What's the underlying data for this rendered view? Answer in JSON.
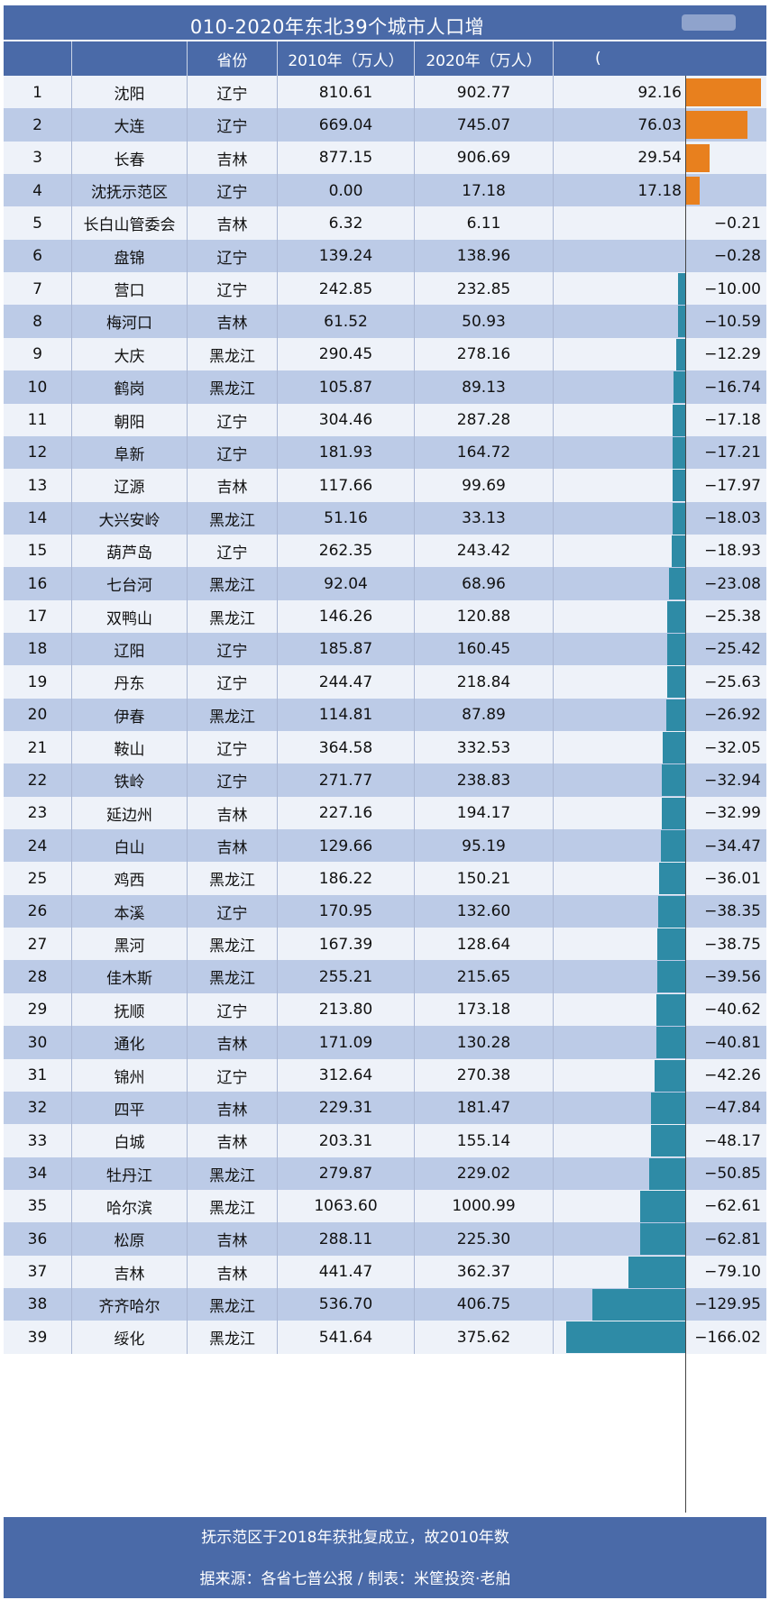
{
  "title": "010-2020年东北39个城市人口增",
  "headers": {
    "rank": "",
    "city": "",
    "province": "省份",
    "pop2010": "2010年（万人）",
    "pop2020": "2020年（万人）",
    "change": "("
  },
  "note": "抚示范区于2018年获批复成立，故2010年数",
  "source": "据来源：各省七普公报 / 制表：米筐投资·老舶",
  "colors": {
    "header_bg": "#4a6aa8",
    "row_light": "#eef2f9",
    "row_dark": "#bccbe7",
    "positive": "#e8801e",
    "negative": "#2e8ba6"
  },
  "chart_data": {
    "type": "table",
    "columns": [
      "rank",
      "city",
      "province",
      "pop2010",
      "pop2020",
      "change"
    ],
    "rows": [
      {
        "rank": "1",
        "city": "沈阳",
        "province": "辽宁",
        "pop2010": "810.61",
        "pop2020": "902.77",
        "change": "92.16"
      },
      {
        "rank": "2",
        "city": "大连",
        "province": "辽宁",
        "pop2010": "669.04",
        "pop2020": "745.07",
        "change": "76.03"
      },
      {
        "rank": "3",
        "city": "长春",
        "province": "吉林",
        "pop2010": "877.15",
        "pop2020": "906.69",
        "change": "29.54"
      },
      {
        "rank": "4",
        "city": "沈抚示范区",
        "province": "辽宁",
        "pop2010": "0.00",
        "pop2020": "17.18",
        "change": "17.18"
      },
      {
        "rank": "5",
        "city": "长白山管委会",
        "province": "吉林",
        "pop2010": "6.32",
        "pop2020": "6.11",
        "change": "−0.21"
      },
      {
        "rank": "6",
        "city": "盘锦",
        "province": "辽宁",
        "pop2010": "139.24",
        "pop2020": "138.96",
        "change": "−0.28"
      },
      {
        "rank": "7",
        "city": "营口",
        "province": "辽宁",
        "pop2010": "242.85",
        "pop2020": "232.85",
        "change": "−10.00"
      },
      {
        "rank": "8",
        "city": "梅河口",
        "province": "吉林",
        "pop2010": "61.52",
        "pop2020": "50.93",
        "change": "−10.59"
      },
      {
        "rank": "9",
        "city": "大庆",
        "province": "黑龙江",
        "pop2010": "290.45",
        "pop2020": "278.16",
        "change": "−12.29"
      },
      {
        "rank": "10",
        "city": "鹤岗",
        "province": "黑龙江",
        "pop2010": "105.87",
        "pop2020": "89.13",
        "change": "−16.74"
      },
      {
        "rank": "11",
        "city": "朝阳",
        "province": "辽宁",
        "pop2010": "304.46",
        "pop2020": "287.28",
        "change": "−17.18"
      },
      {
        "rank": "12",
        "city": "阜新",
        "province": "辽宁",
        "pop2010": "181.93",
        "pop2020": "164.72",
        "change": "−17.21"
      },
      {
        "rank": "13",
        "city": "辽源",
        "province": "吉林",
        "pop2010": "117.66",
        "pop2020": "99.69",
        "change": "−17.97"
      },
      {
        "rank": "14",
        "city": "大兴安岭",
        "province": "黑龙江",
        "pop2010": "51.16",
        "pop2020": "33.13",
        "change": "−18.03"
      },
      {
        "rank": "15",
        "city": "葫芦岛",
        "province": "辽宁",
        "pop2010": "262.35",
        "pop2020": "243.42",
        "change": "−18.93"
      },
      {
        "rank": "16",
        "city": "七台河",
        "province": "黑龙江",
        "pop2010": "92.04",
        "pop2020": "68.96",
        "change": "−23.08"
      },
      {
        "rank": "17",
        "city": "双鸭山",
        "province": "黑龙江",
        "pop2010": "146.26",
        "pop2020": "120.88",
        "change": "−25.38"
      },
      {
        "rank": "18",
        "city": "辽阳",
        "province": "辽宁",
        "pop2010": "185.87",
        "pop2020": "160.45",
        "change": "−25.42"
      },
      {
        "rank": "19",
        "city": "丹东",
        "province": "辽宁",
        "pop2010": "244.47",
        "pop2020": "218.84",
        "change": "−25.63"
      },
      {
        "rank": "20",
        "city": "伊春",
        "province": "黑龙江",
        "pop2010": "114.81",
        "pop2020": "87.89",
        "change": "−26.92"
      },
      {
        "rank": "21",
        "city": "鞍山",
        "province": "辽宁",
        "pop2010": "364.58",
        "pop2020": "332.53",
        "change": "−32.05"
      },
      {
        "rank": "22",
        "city": "铁岭",
        "province": "辽宁",
        "pop2010": "271.77",
        "pop2020": "238.83",
        "change": "−32.94"
      },
      {
        "rank": "23",
        "city": "延边州",
        "province": "吉林",
        "pop2010": "227.16",
        "pop2020": "194.17",
        "change": "−32.99"
      },
      {
        "rank": "24",
        "city": "白山",
        "province": "吉林",
        "pop2010": "129.66",
        "pop2020": "95.19",
        "change": "−34.47"
      },
      {
        "rank": "25",
        "city": "鸡西",
        "province": "黑龙江",
        "pop2010": "186.22",
        "pop2020": "150.21",
        "change": "−36.01"
      },
      {
        "rank": "26",
        "city": "本溪",
        "province": "辽宁",
        "pop2010": "170.95",
        "pop2020": "132.60",
        "change": "−38.35"
      },
      {
        "rank": "27",
        "city": "黑河",
        "province": "黑龙江",
        "pop2010": "167.39",
        "pop2020": "128.64",
        "change": "−38.75"
      },
      {
        "rank": "28",
        "city": "佳木斯",
        "province": "黑龙江",
        "pop2010": "255.21",
        "pop2020": "215.65",
        "change": "−39.56"
      },
      {
        "rank": "29",
        "city": "抚顺",
        "province": "辽宁",
        "pop2010": "213.80",
        "pop2020": "173.18",
        "change": "−40.62"
      },
      {
        "rank": "30",
        "city": "通化",
        "province": "吉林",
        "pop2010": "171.09",
        "pop2020": "130.28",
        "change": "−40.81"
      },
      {
        "rank": "31",
        "city": "锦州",
        "province": "辽宁",
        "pop2010": "312.64",
        "pop2020": "270.38",
        "change": "−42.26"
      },
      {
        "rank": "32",
        "city": "四平",
        "province": "吉林",
        "pop2010": "229.31",
        "pop2020": "181.47",
        "change": "−47.84"
      },
      {
        "rank": "33",
        "city": "白城",
        "province": "吉林",
        "pop2010": "203.31",
        "pop2020": "155.14",
        "change": "−48.17"
      },
      {
        "rank": "34",
        "city": "牡丹江",
        "province": "黑龙江",
        "pop2010": "279.87",
        "pop2020": "229.02",
        "change": "−50.85"
      },
      {
        "rank": "35",
        "city": "哈尔滨",
        "province": "黑龙江",
        "pop2010": "1063.60",
        "pop2020": "1000.99",
        "change": "−62.61"
      },
      {
        "rank": "36",
        "city": "松原",
        "province": "吉林",
        "pop2010": "288.11",
        "pop2020": "225.30",
        "change": "−62.81"
      },
      {
        "rank": "37",
        "city": "吉林",
        "province": "吉林",
        "pop2010": "441.47",
        "pop2020": "362.37",
        "change": "−79.10"
      },
      {
        "rank": "38",
        "city": "齐齐哈尔",
        "province": "黑龙江",
        "pop2010": "536.70",
        "pop2020": "406.75",
        "change": "−129.95"
      },
      {
        "rank": "39",
        "city": "绥化",
        "province": "黑龙江",
        "pop2010": "541.64",
        "pop2020": "375.62",
        "change": "−166.02"
      }
    ]
  }
}
